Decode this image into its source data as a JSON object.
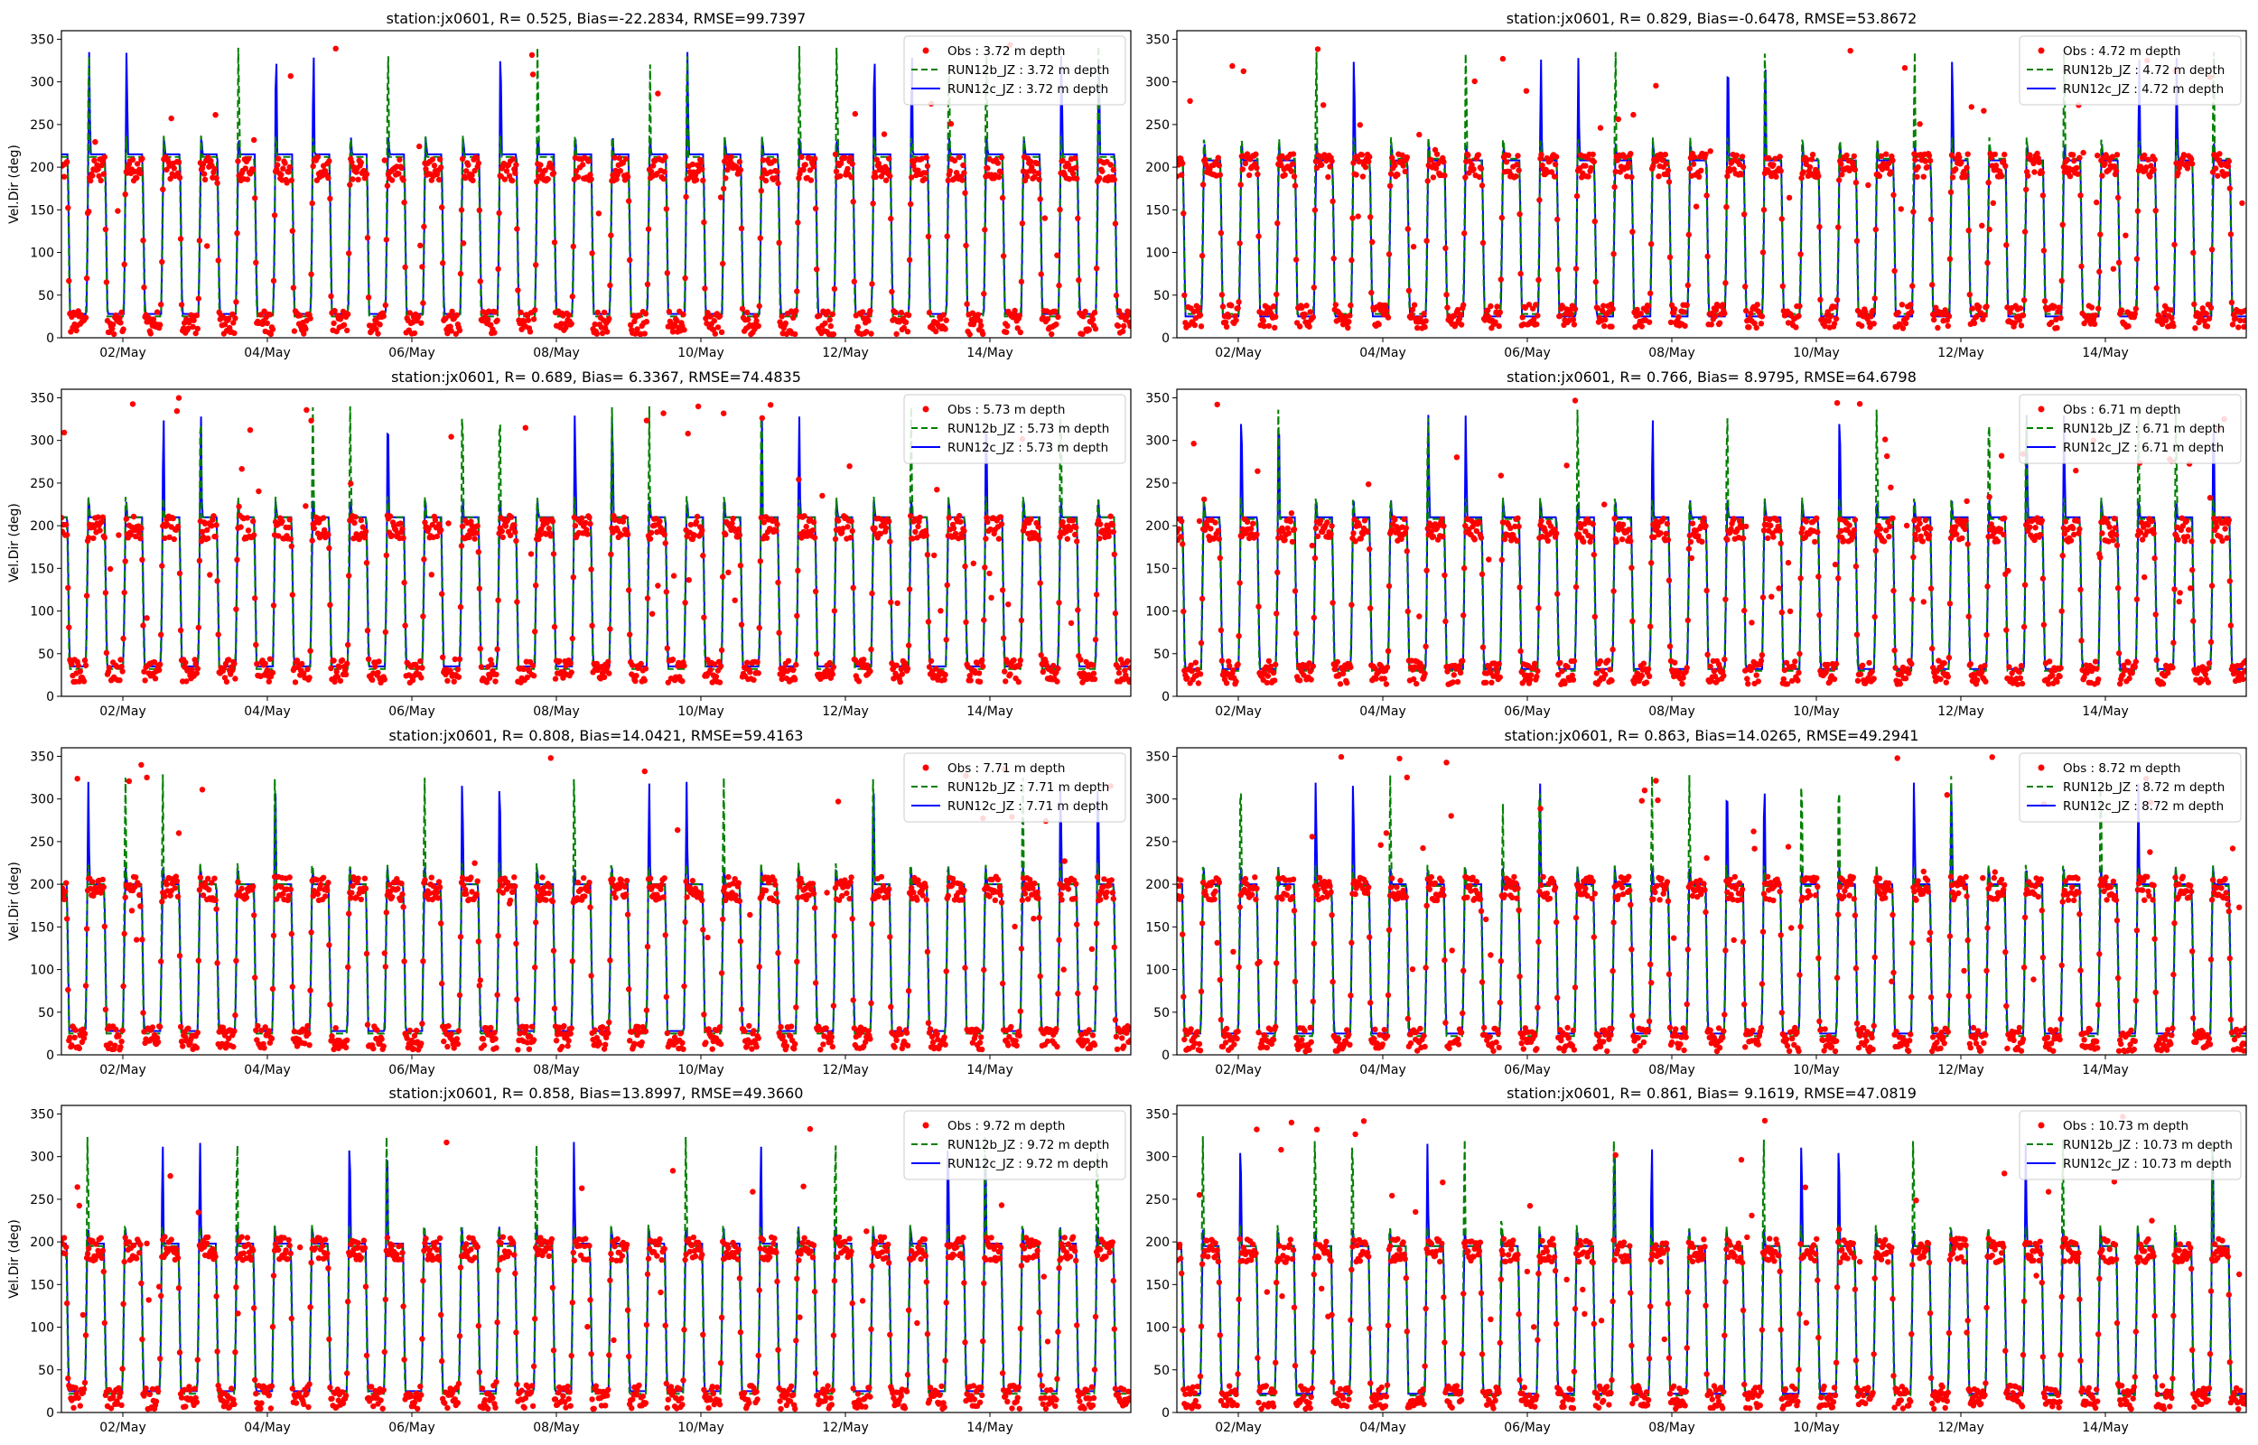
{
  "chart_data": [
    {
      "type": "line",
      "title": "station:jx0601, R= 0.525, Bias=-22.2834, RMSE=99.7397",
      "ylabel": "Vel.Dir (deg)",
      "xlabel": "",
      "xlim": [
        0.15,
        14.95
      ],
      "ylim": [
        0,
        360
      ],
      "x_ticks": [
        {
          "x": 1,
          "label": "02/May"
        },
        {
          "x": 3,
          "label": "04/May"
        },
        {
          "x": 5,
          "label": "06/May"
        },
        {
          "x": 7,
          "label": "08/May"
        },
        {
          "x": 9,
          "label": "10/May"
        },
        {
          "x": 11,
          "label": "12/May"
        },
        {
          "x": 13,
          "label": "14/May"
        }
      ],
      "y_ticks": [
        0,
        50,
        100,
        150,
        200,
        250,
        300,
        350
      ],
      "legend_position": "top-right",
      "series": [
        {
          "name": "Obs : 3.72 m depth",
          "style": "points",
          "color": "#ff0000",
          "period_days": 0.5175,
          "high": 198,
          "low": 18
        },
        {
          "name": "RUN12b_JZ : 3.72 m depth",
          "style": "dashed",
          "color": "#008000",
          "period_days": 0.5175,
          "high": 212,
          "low": 25
        },
        {
          "name": "RUN12c_JZ : 3.72 m depth",
          "style": "solid",
          "color": "#0000ff",
          "period_days": 0.5175,
          "high": 215,
          "low": 28
        }
      ]
    },
    {
      "type": "line",
      "title": "station:jx0601, R= 0.829, Bias=-0.6478, RMSE=53.8672",
      "ylabel": "",
      "xlabel": "",
      "xlim": [
        0.15,
        14.95
      ],
      "ylim": [
        0,
        360
      ],
      "x_ticks": [
        {
          "x": 1,
          "label": "02/May"
        },
        {
          "x": 3,
          "label": "04/May"
        },
        {
          "x": 5,
          "label": "06/May"
        },
        {
          "x": 7,
          "label": "08/May"
        },
        {
          "x": 9,
          "label": "10/May"
        },
        {
          "x": 11,
          "label": "12/May"
        },
        {
          "x": 13,
          "label": "14/May"
        }
      ],
      "y_ticks": [
        0,
        50,
        100,
        150,
        200,
        250,
        300,
        350
      ],
      "legend_position": "top-right",
      "series": [
        {
          "name": "Obs : 4.72 m depth",
          "style": "points",
          "color": "#ff0000",
          "period_days": 0.5175,
          "high": 202,
          "low": 25
        },
        {
          "name": "RUN12b_JZ : 4.72 m depth",
          "style": "dashed",
          "color": "#008000",
          "period_days": 0.5175,
          "high": 210,
          "low": 28
        },
        {
          "name": "RUN12c_JZ : 4.72 m depth",
          "style": "solid",
          "color": "#0000ff",
          "period_days": 0.5175,
          "high": 208,
          "low": 25
        }
      ]
    },
    {
      "type": "line",
      "title": "station:jx0601, R= 0.689, Bias= 6.3367, RMSE=74.4835",
      "ylabel": "Vel.Dir (deg)",
      "xlabel": "",
      "xlim": [
        0.15,
        14.95
      ],
      "ylim": [
        0,
        360
      ],
      "x_ticks": [
        {
          "x": 1,
          "label": "02/May"
        },
        {
          "x": 3,
          "label": "04/May"
        },
        {
          "x": 5,
          "label": "06/May"
        },
        {
          "x": 7,
          "label": "08/May"
        },
        {
          "x": 9,
          "label": "10/May"
        },
        {
          "x": 11,
          "label": "12/May"
        },
        {
          "x": 13,
          "label": "14/May"
        }
      ],
      "y_ticks": [
        0,
        50,
        100,
        150,
        200,
        250,
        300,
        350
      ],
      "legend_position": "top-right",
      "series": [
        {
          "name": "Obs : 5.73 m depth",
          "style": "points",
          "color": "#ff0000",
          "period_days": 0.5175,
          "high": 198,
          "low": 30
        },
        {
          "name": "RUN12b_JZ : 5.73 m depth",
          "style": "dashed",
          "color": "#008000",
          "period_days": 0.5175,
          "high": 210,
          "low": 32
        },
        {
          "name": "RUN12c_JZ : 5.73 m depth",
          "style": "solid",
          "color": "#0000ff",
          "period_days": 0.5175,
          "high": 210,
          "low": 35
        }
      ]
    },
    {
      "type": "line",
      "title": "station:jx0601, R= 0.766, Bias= 8.9795, RMSE=64.6798",
      "ylabel": "",
      "xlabel": "",
      "xlim": [
        0.15,
        14.95
      ],
      "ylim": [
        0,
        360
      ],
      "x_ticks": [
        {
          "x": 1,
          "label": "02/May"
        },
        {
          "x": 3,
          "label": "04/May"
        },
        {
          "x": 5,
          "label": "06/May"
        },
        {
          "x": 7,
          "label": "08/May"
        },
        {
          "x": 9,
          "label": "10/May"
        },
        {
          "x": 11,
          "label": "12/May"
        },
        {
          "x": 13,
          "label": "14/May"
        }
      ],
      "y_ticks": [
        0,
        50,
        100,
        150,
        200,
        250,
        300,
        350
      ],
      "legend_position": "top-right",
      "series": [
        {
          "name": "Obs : 6.71 m depth",
          "style": "points",
          "color": "#ff0000",
          "period_days": 0.5175,
          "high": 195,
          "low": 28
        },
        {
          "name": "RUN12b_JZ : 6.71 m depth",
          "style": "dashed",
          "color": "#008000",
          "period_days": 0.5175,
          "high": 208,
          "low": 30
        },
        {
          "name": "RUN12c_JZ : 6.71 m depth",
          "style": "solid",
          "color": "#0000ff",
          "period_days": 0.5175,
          "high": 210,
          "low": 32
        }
      ]
    },
    {
      "type": "line",
      "title": "station:jx0601, R= 0.808, Bias=14.0421, RMSE=59.4163",
      "ylabel": "Vel.Dir (deg)",
      "xlabel": "",
      "xlim": [
        0.15,
        14.95
      ],
      "ylim": [
        0,
        360
      ],
      "x_ticks": [
        {
          "x": 1,
          "label": "02/May"
        },
        {
          "x": 3,
          "label": "04/May"
        },
        {
          "x": 5,
          "label": "06/May"
        },
        {
          "x": 7,
          "label": "08/May"
        },
        {
          "x": 9,
          "label": "10/May"
        },
        {
          "x": 11,
          "label": "12/May"
        },
        {
          "x": 13,
          "label": "14/May"
        }
      ],
      "y_ticks": [
        0,
        50,
        100,
        150,
        200,
        250,
        300,
        350
      ],
      "legend_position": "top-right",
      "series": [
        {
          "name": "Obs : 7.71 m depth",
          "style": "points",
          "color": "#ff0000",
          "period_days": 0.5175,
          "high": 195,
          "low": 20
        },
        {
          "name": "RUN12b_JZ : 7.71 m depth",
          "style": "dashed",
          "color": "#008000",
          "period_days": 0.5175,
          "high": 200,
          "low": 25
        },
        {
          "name": "RUN12c_JZ : 7.71 m depth",
          "style": "solid",
          "color": "#0000ff",
          "period_days": 0.5175,
          "high": 200,
          "low": 28
        }
      ]
    },
    {
      "type": "line",
      "title": "station:jx0601, R= 0.863, Bias=14.0265, RMSE=49.2941",
      "ylabel": "",
      "xlabel": "",
      "xlim": [
        0.15,
        14.95
      ],
      "ylim": [
        0,
        360
      ],
      "x_ticks": [
        {
          "x": 1,
          "label": "02/May"
        },
        {
          "x": 3,
          "label": "04/May"
        },
        {
          "x": 5,
          "label": "06/May"
        },
        {
          "x": 7,
          "label": "08/May"
        },
        {
          "x": 9,
          "label": "10/May"
        },
        {
          "x": 11,
          "label": "12/May"
        },
        {
          "x": 13,
          "label": "14/May"
        }
      ],
      "y_ticks": [
        0,
        50,
        100,
        150,
        200,
        250,
        300,
        350
      ],
      "legend_position": "top-right",
      "series": [
        {
          "name": "Obs : 8.72 m depth",
          "style": "points",
          "color": "#ff0000",
          "period_days": 0.5175,
          "high": 195,
          "low": 18
        },
        {
          "name": "RUN12b_JZ : 8.72 m depth",
          "style": "dashed",
          "color": "#008000",
          "period_days": 0.5175,
          "high": 198,
          "low": 22
        },
        {
          "name": "RUN12c_JZ : 8.72 m depth",
          "style": "solid",
          "color": "#0000ff",
          "period_days": 0.5175,
          "high": 200,
          "low": 25
        }
      ]
    },
    {
      "type": "line",
      "title": "station:jx0601, R= 0.858, Bias=13.8997, RMSE=49.3660",
      "ylabel": "Vel.Dir (deg)",
      "xlabel": "",
      "xlim": [
        0.15,
        14.95
      ],
      "ylim": [
        0,
        360
      ],
      "x_ticks": [
        {
          "x": 1,
          "label": "02/May"
        },
        {
          "x": 3,
          "label": "04/May"
        },
        {
          "x": 5,
          "label": "06/May"
        },
        {
          "x": 7,
          "label": "08/May"
        },
        {
          "x": 9,
          "label": "10/May"
        },
        {
          "x": 11,
          "label": "12/May"
        },
        {
          "x": 13,
          "label": "14/May"
        }
      ],
      "y_ticks": [
        0,
        50,
        100,
        150,
        200,
        250,
        300,
        350
      ],
      "legend_position": "top-right",
      "series": [
        {
          "name": "Obs : 9.72 m depth",
          "style": "points",
          "color": "#ff0000",
          "period_days": 0.5175,
          "high": 192,
          "low": 18
        },
        {
          "name": "RUN12b_JZ : 9.72 m depth",
          "style": "dashed",
          "color": "#008000",
          "period_days": 0.5175,
          "high": 195,
          "low": 22
        },
        {
          "name": "RUN12c_JZ : 9.72 m depth",
          "style": "solid",
          "color": "#0000ff",
          "period_days": 0.5175,
          "high": 198,
          "low": 25
        }
      ]
    },
    {
      "type": "line",
      "title": "station:jx0601, R= 0.861, Bias= 9.1619, RMSE=47.0819",
      "ylabel": "",
      "xlabel": "",
      "xlim": [
        0.15,
        14.95
      ],
      "ylim": [
        0,
        360
      ],
      "x_ticks": [
        {
          "x": 1,
          "label": "02/May"
        },
        {
          "x": 3,
          "label": "04/May"
        },
        {
          "x": 5,
          "label": "06/May"
        },
        {
          "x": 7,
          "label": "08/May"
        },
        {
          "x": 9,
          "label": "10/May"
        },
        {
          "x": 11,
          "label": "12/May"
        },
        {
          "x": 13,
          "label": "14/May"
        }
      ],
      "y_ticks": [
        0,
        50,
        100,
        150,
        200,
        250,
        300,
        350
      ],
      "legend_position": "top-right",
      "series": [
        {
          "name": "Obs : 10.73 m depth",
          "style": "points",
          "color": "#ff0000",
          "period_days": 0.5175,
          "high": 190,
          "low": 18
        },
        {
          "name": "RUN12b_JZ : 10.73 m depth",
          "style": "dashed",
          "color": "#008000",
          "period_days": 0.5175,
          "high": 195,
          "low": 20
        },
        {
          "name": "RUN12c_JZ : 10.73 m depth",
          "style": "solid",
          "color": "#0000ff",
          "period_days": 0.5175,
          "high": 195,
          "low": 22
        }
      ]
    }
  ]
}
